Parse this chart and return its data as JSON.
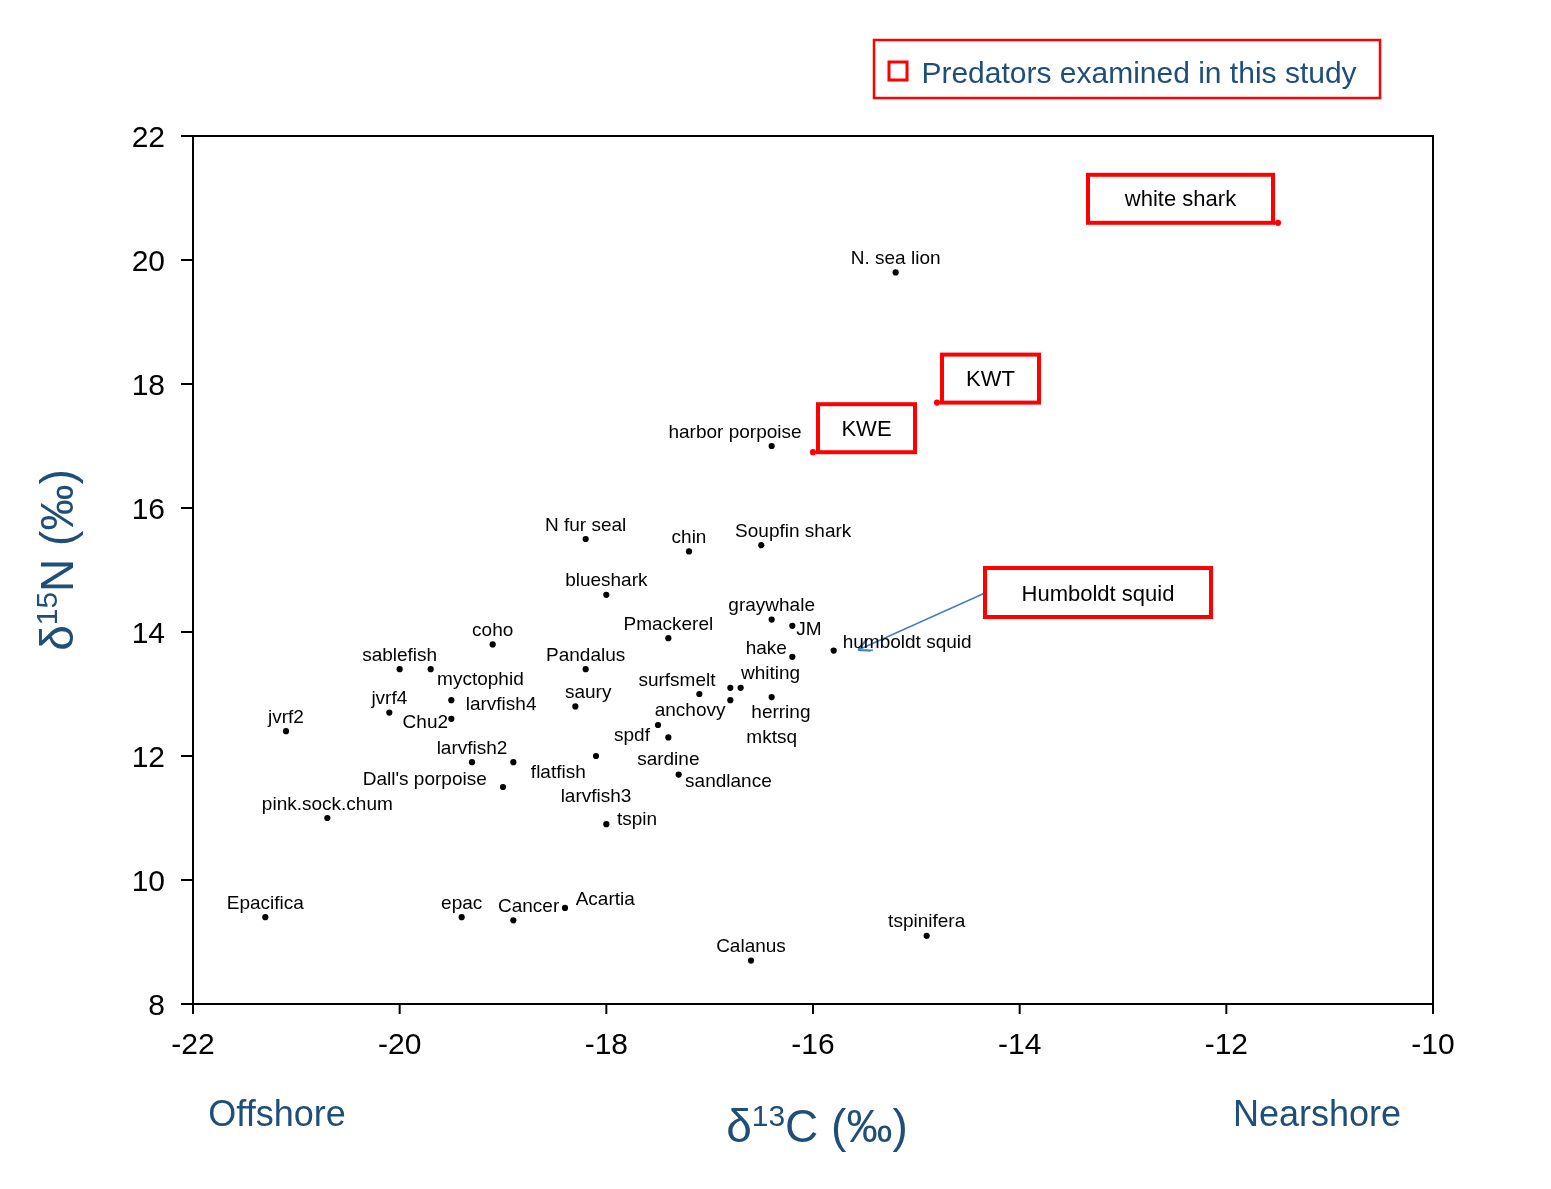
{
  "chart_data": {
    "type": "scatter",
    "xlabel": "δ$^{13}$C (‰)",
    "ylabel": "δ$^{15}$N (‰)",
    "xlim": [
      -22,
      -10
    ],
    "xticks": [
      -22,
      -20,
      -18,
      -16,
      -14,
      -12,
      -10
    ],
    "ylim": [
      8,
      22
    ],
    "yticks": [
      8,
      10,
      12,
      14,
      16,
      18,
      20,
      22
    ],
    "grid": false,
    "marker": "circle",
    "legend": "top right",
    "annotations": [
      "Offshore",
      "Nearshore",
      "Humboldt squid"
    ],
    "series": [
      {
        "color": "#000000",
        "x": [
          -15.2,
          -16.4,
          -18.2,
          -17.2,
          -16.5,
          -18.0,
          -16.4,
          -16.2,
          -19.1,
          -17.4,
          -15.8,
          -16.2,
          -20.0,
          -19.7,
          -18.2,
          -19.5,
          -20.1,
          -19.5,
          -18.3,
          -21.1,
          -17.1,
          -16.8,
          -16.7,
          -16.8,
          -16.4,
          -17.5,
          -17.4,
          -19.3,
          -18.9,
          -18.1,
          -19.0,
          -17.3,
          -20.7,
          -18.0,
          -21.3,
          -19.4,
          -18.9,
          -18.4,
          -14.9,
          -16.6
        ],
        "values": [
          19.8,
          17.0,
          15.5,
          15.3,
          15.4,
          14.6,
          14.2,
          14.1,
          13.8,
          13.9,
          13.7,
          13.6,
          13.4,
          13.4,
          13.4,
          12.9,
          12.7,
          12.6,
          12.8,
          12.4,
          13.0,
          13.1,
          13.1,
          12.9,
          12.95,
          12.5,
          12.3,
          11.9,
          11.9,
          12.0,
          11.5,
          11.7,
          11.0,
          10.9,
          9.4,
          9.4,
          9.35,
          9.55,
          9.1,
          8.7
        ],
        "value_labels": [
          "N. sea lion",
          "harbor porpoise",
          "N fur seal",
          "chin",
          "Soupfin shark",
          "blueshark",
          "graywhale",
          "JM",
          "coho",
          "Pmackerel",
          "humboldt squid",
          "hake",
          "sablefish",
          "myctophid",
          "Pandalus",
          "larvfish4",
          "jvrf4",
          "Chu2",
          "saury",
          "jvrf2",
          "surfsmelt",
          "whiting",
          "herring",
          "anchovy",
          "mktsq",
          "spdf",
          "sardine",
          "larvfish2",
          "flatfish",
          "larvfish3",
          "Dall's porpoise",
          "sandlance",
          "pink.sock.chum",
          "tspin",
          "Epacifica",
          "epac",
          "Cancer",
          "Acartia",
          "tspinifera",
          "Calanus"
        ]
      },
      {
        "name": "Predators examined in this study",
        "color": "#ff0000",
        "x": [
          -11.5,
          -14.8,
          -16.0
        ],
        "values": [
          20.6,
          17.7,
          16.9
        ],
        "value_labels": [
          "white shark",
          "KWT",
          "KWE"
        ]
      }
    ]
  }
}
